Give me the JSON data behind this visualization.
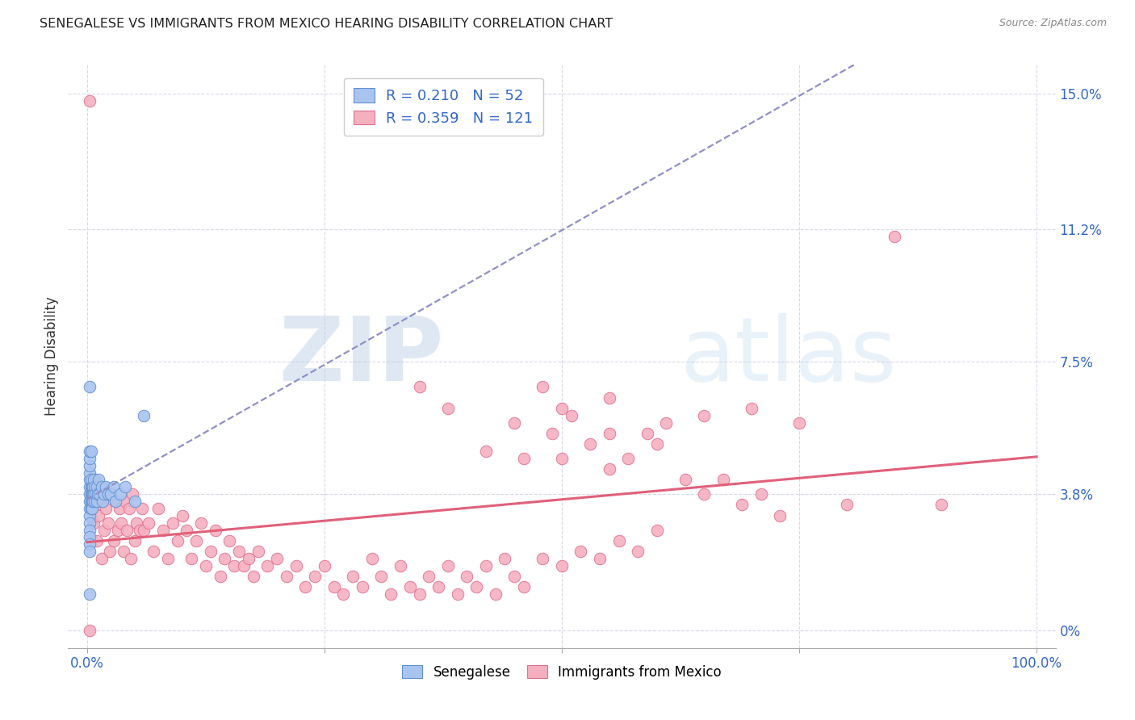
{
  "title": "SENEGALESE VS IMMIGRANTS FROM MEXICO HEARING DISABILITY CORRELATION CHART",
  "source": "Source: ZipAtlas.com",
  "ylabel": "Hearing Disability",
  "xlim": [
    -0.02,
    1.02
  ],
  "ylim": [
    -0.005,
    0.158
  ],
  "yticks": [
    0.0,
    0.038,
    0.075,
    0.112,
    0.15
  ],
  "ytick_labels": [
    "0%",
    "3.8%",
    "7.5%",
    "11.2%",
    "15.0%"
  ],
  "xticks": [
    0.0,
    0.25,
    0.5,
    0.75,
    1.0
  ],
  "xtick_labels": [
    "0.0%",
    "",
    "",
    "",
    "100.0%"
  ],
  "senegalese_color": "#aac4f0",
  "mexico_color": "#f5b0c0",
  "senegalese_edge_color": "#6090d0",
  "mexico_edge_color": "#e07090",
  "trend_senegalese_color": "#9090c8",
  "trend_mexico_color": "#e0607a",
  "watermark_color": "#c8dcf0",
  "background_color": "#ffffff",
  "grid_color": "#d8d8e8",
  "tick_color": "#3366cc",
  "title_fontsize": 11.5,
  "senegalese_x": [
    0.003,
    0.003,
    0.003,
    0.003,
    0.003,
    0.003,
    0.003,
    0.003,
    0.003,
    0.003,
    0.003,
    0.003,
    0.003,
    0.003,
    0.003,
    0.004,
    0.004,
    0.004,
    0.004,
    0.004,
    0.005,
    0.005,
    0.005,
    0.005,
    0.006,
    0.006,
    0.006,
    0.007,
    0.007,
    0.008,
    0.008,
    0.009,
    0.01,
    0.01,
    0.011,
    0.012,
    0.013,
    0.015,
    0.016,
    0.018,
    0.02,
    0.022,
    0.025,
    0.028,
    0.03,
    0.035,
    0.04,
    0.05,
    0.06,
    0.003,
    0.003,
    0.004
  ],
  "senegalese_y": [
    0.038,
    0.034,
    0.04,
    0.036,
    0.032,
    0.042,
    0.03,
    0.044,
    0.028,
    0.046,
    0.026,
    0.048,
    0.024,
    0.05,
    0.022,
    0.036,
    0.04,
    0.034,
    0.038,
    0.042,
    0.038,
    0.036,
    0.04,
    0.034,
    0.038,
    0.04,
    0.036,
    0.042,
    0.038,
    0.04,
    0.036,
    0.038,
    0.04,
    0.036,
    0.038,
    0.042,
    0.038,
    0.04,
    0.036,
    0.038,
    0.04,
    0.038,
    0.038,
    0.04,
    0.036,
    0.038,
    0.04,
    0.036,
    0.06,
    0.068,
    0.01,
    0.05
  ],
  "mexico_x": [
    0.003,
    0.005,
    0.007,
    0.008,
    0.01,
    0.01,
    0.012,
    0.014,
    0.015,
    0.016,
    0.018,
    0.02,
    0.022,
    0.024,
    0.025,
    0.028,
    0.03,
    0.032,
    0.034,
    0.036,
    0.038,
    0.04,
    0.042,
    0.044,
    0.046,
    0.048,
    0.05,
    0.052,
    0.055,
    0.058,
    0.06,
    0.065,
    0.07,
    0.075,
    0.08,
    0.085,
    0.09,
    0.095,
    0.1,
    0.105,
    0.11,
    0.115,
    0.12,
    0.125,
    0.13,
    0.135,
    0.14,
    0.145,
    0.15,
    0.155,
    0.16,
    0.165,
    0.17,
    0.175,
    0.18,
    0.19,
    0.2,
    0.21,
    0.22,
    0.23,
    0.24,
    0.25,
    0.26,
    0.27,
    0.28,
    0.29,
    0.3,
    0.31,
    0.32,
    0.33,
    0.34,
    0.35,
    0.36,
    0.37,
    0.38,
    0.39,
    0.4,
    0.41,
    0.42,
    0.43,
    0.44,
    0.45,
    0.46,
    0.48,
    0.5,
    0.52,
    0.54,
    0.56,
    0.58,
    0.6,
    0.45,
    0.5,
    0.55,
    0.6,
    0.65,
    0.7,
    0.75,
    0.8,
    0.85,
    0.9,
    0.35,
    0.38,
    0.42,
    0.46,
    0.49,
    0.51,
    0.53,
    0.55,
    0.57,
    0.59,
    0.61,
    0.63,
    0.65,
    0.67,
    0.69,
    0.71,
    0.73,
    0.5,
    0.55,
    0.48,
    0.003
  ],
  "mexico_y": [
    0.148,
    0.038,
    0.03,
    0.042,
    0.025,
    0.035,
    0.032,
    0.04,
    0.02,
    0.036,
    0.028,
    0.034,
    0.03,
    0.022,
    0.038,
    0.025,
    0.036,
    0.028,
    0.034,
    0.03,
    0.022,
    0.036,
    0.028,
    0.034,
    0.02,
    0.038,
    0.025,
    0.03,
    0.028,
    0.034,
    0.028,
    0.03,
    0.022,
    0.034,
    0.028,
    0.02,
    0.03,
    0.025,
    0.032,
    0.028,
    0.02,
    0.025,
    0.03,
    0.018,
    0.022,
    0.028,
    0.015,
    0.02,
    0.025,
    0.018,
    0.022,
    0.018,
    0.02,
    0.015,
    0.022,
    0.018,
    0.02,
    0.015,
    0.018,
    0.012,
    0.015,
    0.018,
    0.012,
    0.01,
    0.015,
    0.012,
    0.02,
    0.015,
    0.01,
    0.018,
    0.012,
    0.01,
    0.015,
    0.012,
    0.018,
    0.01,
    0.015,
    0.012,
    0.018,
    0.01,
    0.02,
    0.015,
    0.012,
    0.02,
    0.018,
    0.022,
    0.02,
    0.025,
    0.022,
    0.028,
    0.058,
    0.048,
    0.055,
    0.052,
    0.06,
    0.062,
    0.058,
    0.035,
    0.11,
    0.035,
    0.068,
    0.062,
    0.05,
    0.048,
    0.055,
    0.06,
    0.052,
    0.045,
    0.048,
    0.055,
    0.058,
    0.042,
    0.038,
    0.042,
    0.035,
    0.038,
    0.032,
    0.062,
    0.065,
    0.068,
    0.0
  ]
}
